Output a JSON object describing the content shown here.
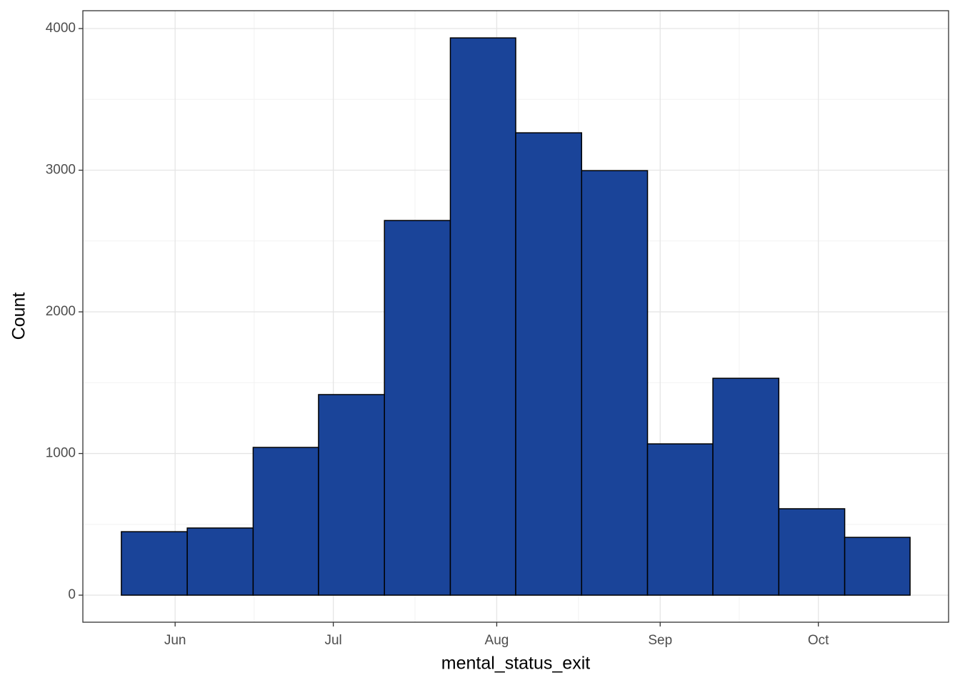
{
  "chart_data": {
    "type": "histogram",
    "x_label": "mental_status_exit",
    "y_label": "Count",
    "bins": [
      141.8,
      154.3,
      166.8,
      179.2,
      191.7,
      204.2,
      216.6,
      229.1,
      241.6,
      254.0,
      266.5,
      279.0,
      291.4
    ],
    "values": [
      448,
      474,
      1043,
      1416,
      2645,
      3934,
      3264,
      2997,
      1068,
      1531,
      610,
      408
    ],
    "color": "#1a4499",
    "edge_color": "#000000",
    "xlim": [
      134.5,
      298.7
    ],
    "ylim": [
      -191,
      4126
    ],
    "xticks": [
      {
        "value": 152,
        "label": "Jun"
      },
      {
        "value": 182,
        "label": "Jul"
      },
      {
        "value": 213,
        "label": "Aug"
      },
      {
        "value": 244,
        "label": "Sep"
      },
      {
        "value": 274,
        "label": "Oct"
      }
    ],
    "yticks": [
      0,
      1000,
      2000,
      3000,
      4000
    ],
    "grid": true
  }
}
